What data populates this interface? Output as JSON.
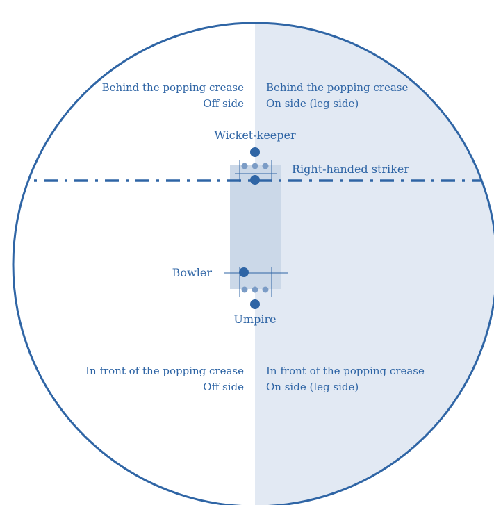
{
  "colors": {
    "primary": "#2f65a5",
    "on_side_fill": "#e2e9f3",
    "pitch_fill": "#cbd8e8",
    "secondary_dots": "#7b9cc6"
  },
  "quadrants": {
    "top_left": {
      "line1": "Behind the popping crease",
      "line2": "Off side"
    },
    "top_right": {
      "line1": "Behind the popping crease",
      "line2": "On side (leg side)"
    },
    "bottom_left": {
      "line1": "In front of the popping crease",
      "line2": "Off side"
    },
    "bottom_right": {
      "line1": "In front of the popping crease",
      "line2": "On side (leg side)"
    }
  },
  "players": {
    "wicket_keeper": "Wicket-keeper",
    "striker": "Right-handed striker",
    "bowler": "Bowler",
    "umpire": "Umpire"
  }
}
